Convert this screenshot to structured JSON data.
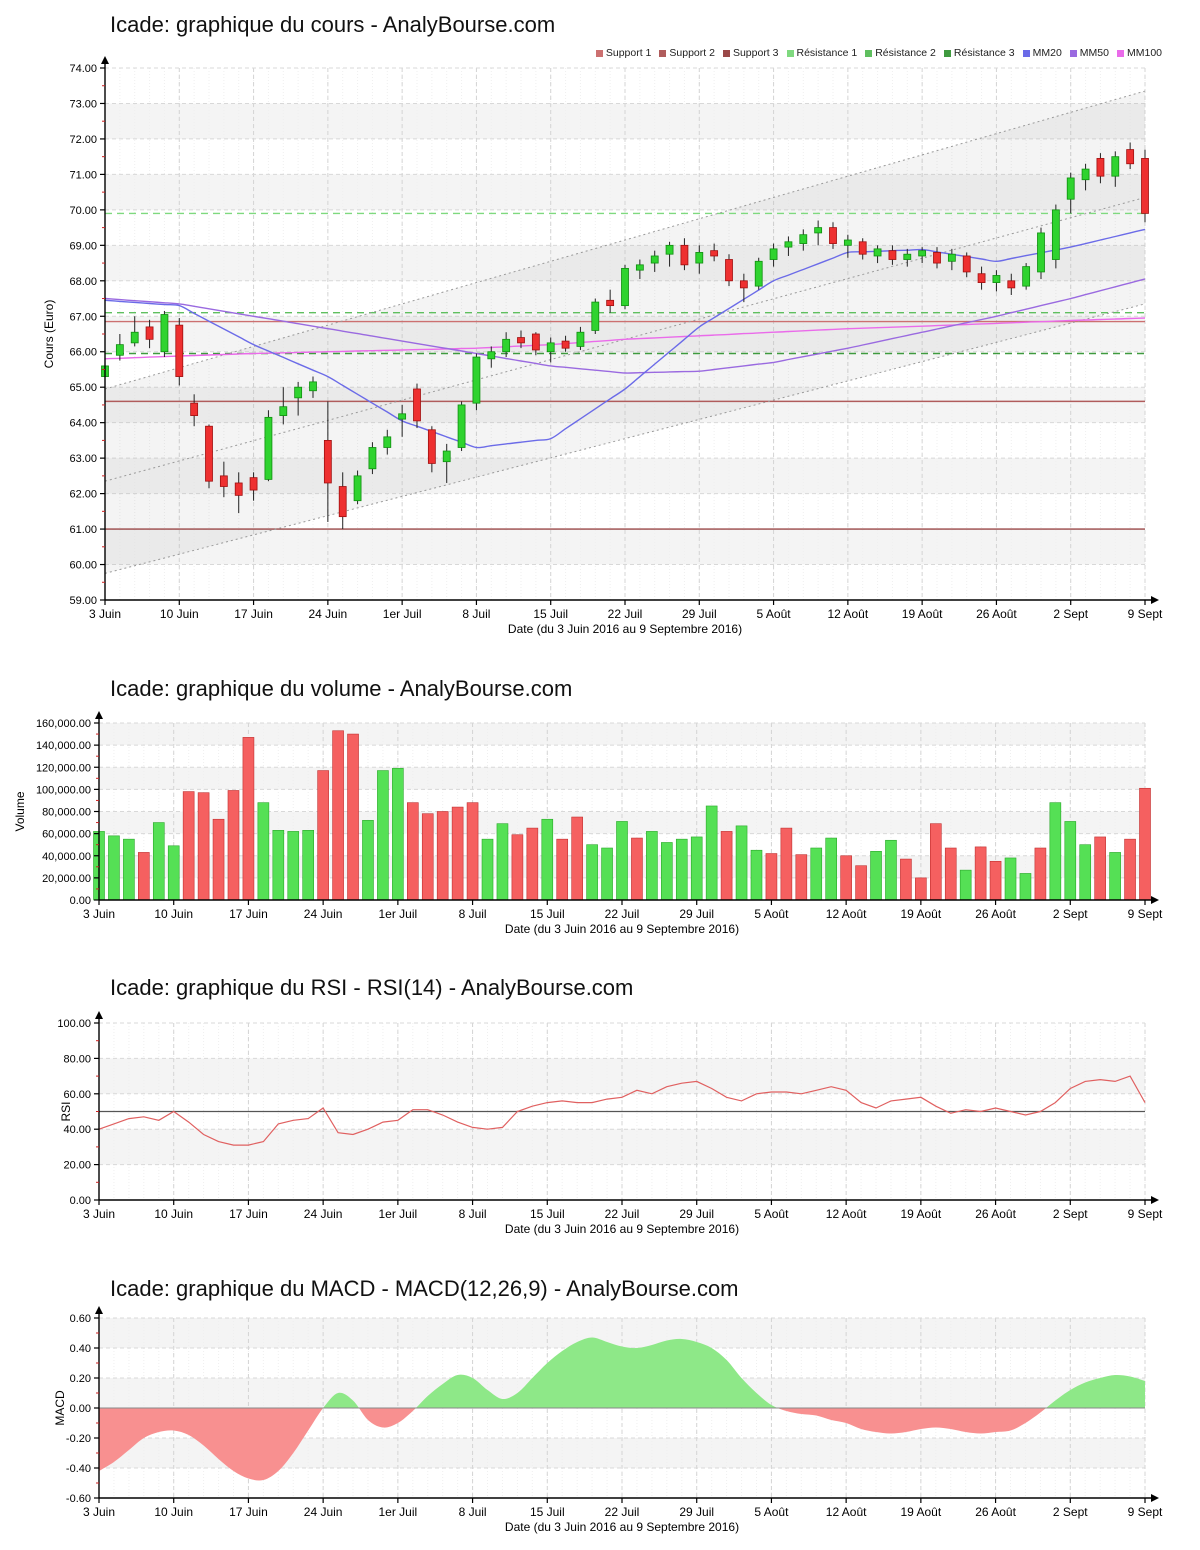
{
  "page_background": "#ffffff",
  "x_axis": {
    "tick_labels": [
      "3 Juin",
      "10 Juin",
      "17 Juin",
      "24 Juin",
      "1er Juil",
      "8 Juil",
      "15 Juil",
      "22 Juil",
      "29 Juil",
      "5 Août",
      "12 Août",
      "19 Août",
      "26 Août",
      "2 Sept",
      "9 Sept"
    ],
    "caption": "Date (du 3 Juin 2016 au 9 Septembre 2016)"
  },
  "shared_colors": {
    "axis": "#000000",
    "minor_tick": "#cc2222",
    "day_grid": "#efefef",
    "week_grid": "#d4d4d4",
    "h_grid": "#d8d8d8",
    "stripe": "#f4f4f4"
  },
  "chart_data": [
    {
      "type": "candlestick",
      "title": "Icade: graphique du cours - AnalyBourse.com",
      "ylabel": "Cours (Euro)",
      "xlabel": "Date (du 3 Juin 2016 au 9 Septembre 2016)",
      "ylim": [
        59,
        74
      ],
      "y_tick_step": 1,
      "y_tick_labels": [
        "74.00",
        "73.00",
        "72.00",
        "71.00",
        "70.00",
        "69.00",
        "68.00",
        "67.00",
        "66.00",
        "65.00",
        "64.00",
        "63.00",
        "62.00",
        "61.00",
        "60.00",
        "59.00"
      ],
      "legend": [
        {
          "label": "Support 1",
          "color": "#cc7070"
        },
        {
          "label": "Support 2",
          "color": "#b05c5c"
        },
        {
          "label": "Support 3",
          "color": "#9a4848"
        },
        {
          "label": "Résistance 1",
          "color": "#7fd97f"
        },
        {
          "label": "Résistance 2",
          "color": "#5fbf5f"
        },
        {
          "label": "Résistance 3",
          "color": "#3f9a3f"
        },
        {
          "label": "MM20",
          "color": "#6b6be8"
        },
        {
          "label": "MM50",
          "color": "#9a6ae0"
        },
        {
          "label": "MM100",
          "color": "#ea6bea"
        }
      ],
      "supports": [
        {
          "name": "Support 1",
          "value": 66.85,
          "color": "#cc7070"
        },
        {
          "name": "Support 2",
          "value": 64.6,
          "color": "#b05c5c"
        },
        {
          "name": "Support 3",
          "value": 61.0,
          "color": "#9a4848"
        }
      ],
      "resistances": [
        {
          "name": "Résistance 1",
          "value": 69.9,
          "color": "#7fd97f"
        },
        {
          "name": "Résistance 2",
          "value": 67.1,
          "color": "#5fbf5f"
        },
        {
          "name": "Résistance 3",
          "value": 65.95,
          "color": "#3f9a3f"
        }
      ],
      "trend_channel": {
        "lower_start": 59.75,
        "lower_end": 67.35,
        "upper_start": 64.95,
        "upper_end": 73.35,
        "line_color": "#9a9a9a",
        "fill": "rgba(150,150,150,0.10)"
      },
      "moving_averages": {
        "mm20_weekly": [
          67.45,
          67.3,
          66.2,
          65.3,
          64.05,
          63.3,
          63.55,
          64.95,
          66.7,
          68.0,
          68.8,
          68.88,
          68.55,
          68.95,
          69.45
        ],
        "mm50_weekly": [
          67.5,
          67.35,
          67.0,
          66.65,
          66.3,
          65.95,
          65.6,
          65.4,
          65.45,
          65.7,
          66.1,
          66.55,
          67.0,
          67.5,
          68.05
        ],
        "mm100_weekly": [
          65.8,
          65.88,
          65.95,
          66.0,
          66.05,
          66.1,
          66.2,
          66.35,
          66.45,
          66.55,
          66.65,
          66.72,
          66.8,
          66.88,
          66.95
        ],
        "mm20_color": "#6b6be8",
        "mm50_color": "#9a6ae0",
        "mm100_color": "#ea6bea"
      },
      "ohlc": [
        [
          65.3,
          66.1,
          64.85,
          65.6
        ],
        [
          65.9,
          66.5,
          65.75,
          66.2
        ],
        [
          66.25,
          67.0,
          66.15,
          66.55
        ],
        [
          66.7,
          66.9,
          66.1,
          66.35
        ],
        [
          66.0,
          67.15,
          65.85,
          67.05
        ],
        [
          66.75,
          66.95,
          65.05,
          65.3
        ],
        [
          64.55,
          64.8,
          63.9,
          64.2
        ],
        [
          63.9,
          63.95,
          62.15,
          62.35
        ],
        [
          62.5,
          62.9,
          61.9,
          62.2
        ],
        [
          62.3,
          62.6,
          61.45,
          61.95
        ],
        [
          62.45,
          62.6,
          61.8,
          62.1
        ],
        [
          62.4,
          64.35,
          62.35,
          64.15
        ],
        [
          64.2,
          65.0,
          63.95,
          64.45
        ],
        [
          64.7,
          65.15,
          64.2,
          65.0
        ],
        [
          64.9,
          65.3,
          64.7,
          65.15
        ],
        [
          63.5,
          64.6,
          61.2,
          62.3
        ],
        [
          62.2,
          62.6,
          61.0,
          61.35
        ],
        [
          61.8,
          62.65,
          61.7,
          62.5
        ],
        [
          62.7,
          63.45,
          62.55,
          63.3
        ],
        [
          63.3,
          63.8,
          63.1,
          63.6
        ],
        [
          64.1,
          64.5,
          63.6,
          64.25
        ],
        [
          64.95,
          65.1,
          63.85,
          64.05
        ],
        [
          63.8,
          63.9,
          62.6,
          62.85
        ],
        [
          62.9,
          63.4,
          62.3,
          63.2
        ],
        [
          63.3,
          64.6,
          63.2,
          64.5
        ],
        [
          64.55,
          65.95,
          64.35,
          65.85
        ],
        [
          65.8,
          66.15,
          65.55,
          66.0
        ],
        [
          66.0,
          66.55,
          65.85,
          66.35
        ],
        [
          66.4,
          66.6,
          66.1,
          66.25
        ],
        [
          66.5,
          66.55,
          65.9,
          66.05
        ],
        [
          66.0,
          66.4,
          65.7,
          66.25
        ],
        [
          66.3,
          66.45,
          66.0,
          66.1
        ],
        [
          66.15,
          66.7,
          66.05,
          66.55
        ],
        [
          66.6,
          67.5,
          66.5,
          67.4
        ],
        [
          67.45,
          67.75,
          67.1,
          67.3
        ],
        [
          67.3,
          68.45,
          67.2,
          68.35
        ],
        [
          68.3,
          68.6,
          68.05,
          68.45
        ],
        [
          68.5,
          68.85,
          68.25,
          68.7
        ],
        [
          68.75,
          69.1,
          68.4,
          69.0
        ],
        [
          69.0,
          69.2,
          68.3,
          68.45
        ],
        [
          68.5,
          69.0,
          68.2,
          68.8
        ],
        [
          68.85,
          69.05,
          68.55,
          68.7
        ],
        [
          68.6,
          68.75,
          67.85,
          68.0
        ],
        [
          68.0,
          68.2,
          67.4,
          67.8
        ],
        [
          67.85,
          68.65,
          67.75,
          68.55
        ],
        [
          68.6,
          69.05,
          68.4,
          68.9
        ],
        [
          68.95,
          69.25,
          68.7,
          69.1
        ],
        [
          69.05,
          69.45,
          68.85,
          69.3
        ],
        [
          69.35,
          69.7,
          69.0,
          69.5
        ],
        [
          69.5,
          69.65,
          68.9,
          69.05
        ],
        [
          69.0,
          69.3,
          68.65,
          69.15
        ],
        [
          69.1,
          69.2,
          68.6,
          68.75
        ],
        [
          68.7,
          69.0,
          68.5,
          68.9
        ],
        [
          68.85,
          69.0,
          68.45,
          68.6
        ],
        [
          68.6,
          68.9,
          68.4,
          68.75
        ],
        [
          68.7,
          68.95,
          68.5,
          68.85
        ],
        [
          68.8,
          68.95,
          68.35,
          68.5
        ],
        [
          68.55,
          68.9,
          68.3,
          68.75
        ],
        [
          68.7,
          68.8,
          68.1,
          68.25
        ],
        [
          68.2,
          68.4,
          67.75,
          67.95
        ],
        [
          67.95,
          68.3,
          67.7,
          68.15
        ],
        [
          68.0,
          68.2,
          67.6,
          67.8
        ],
        [
          67.85,
          68.5,
          67.75,
          68.4
        ],
        [
          68.25,
          69.5,
          68.05,
          69.35
        ],
        [
          68.6,
          70.15,
          68.35,
          70.0
        ],
        [
          70.3,
          71.05,
          69.9,
          70.9
        ],
        [
          70.85,
          71.3,
          70.55,
          71.15
        ],
        [
          71.45,
          71.6,
          70.75,
          70.95
        ],
        [
          70.95,
          71.65,
          70.65,
          71.5
        ],
        [
          71.7,
          71.9,
          71.15,
          71.3
        ],
        [
          71.45,
          71.7,
          69.65,
          69.9
        ]
      ],
      "colors": {
        "up": "#2fd32f",
        "up_stroke": "#0f8f0f",
        "down": "#ee3030",
        "down_stroke": "#a01010",
        "wick": "#222222"
      }
    },
    {
      "type": "bar",
      "title": "Icade: graphique du volume - AnalyBourse.com",
      "ylabel": "Volume",
      "xlabel": "Date (du 3 Juin 2016 au 9 Septembre 2016)",
      "ylim": [
        0,
        160000
      ],
      "y_tick_step": 20000,
      "y_tick_labels": [
        "160,000.00",
        "140,000.00",
        "120,000.00",
        "100,000.00",
        "80,000.00",
        "60,000.00",
        "40,000.00",
        "20,000.00",
        "0.00"
      ],
      "values": [
        62000,
        58000,
        55000,
        43000,
        70000,
        49000,
        98000,
        97000,
        73000,
        99000,
        147000,
        88000,
        63000,
        62000,
        63000,
        117000,
        153000,
        150000,
        72000,
        117000,
        119000,
        88000,
        78000,
        80000,
        84000,
        88000,
        55000,
        69000,
        59000,
        65000,
        73000,
        55000,
        75000,
        50000,
        47000,
        71000,
        56000,
        62000,
        52000,
        55000,
        57000,
        85000,
        62000,
        67000,
        45000,
        42000,
        65000,
        41000,
        47000,
        56000,
        40000,
        31000,
        44000,
        54000,
        37000,
        20000,
        69000,
        47000,
        27000,
        48000,
        35000,
        38000,
        24000,
        47000,
        88000,
        71000,
        50000,
        57000,
        43000,
        55000,
        101000
      ],
      "directions": [
        "up",
        "up",
        "up",
        "down",
        "up",
        "up",
        "down",
        "down",
        "down",
        "down",
        "down",
        "up",
        "up",
        "up",
        "up",
        "down",
        "down",
        "down",
        "up",
        "up",
        "up",
        "down",
        "down",
        "down",
        "down",
        "down",
        "up",
        "up",
        "down",
        "down",
        "up",
        "down",
        "down",
        "up",
        "up",
        "up",
        "down",
        "up",
        "up",
        "up",
        "up",
        "up",
        "down",
        "up",
        "up",
        "down",
        "down",
        "down",
        "up",
        "up",
        "down",
        "down",
        "up",
        "up",
        "down",
        "down",
        "down",
        "down",
        "up",
        "down",
        "down",
        "up",
        "up",
        "down",
        "up",
        "up",
        "up",
        "down",
        "up",
        "down",
        "down"
      ],
      "colors": {
        "up": "#55e055",
        "up_stroke": "#2aa82a",
        "down": "#f56060",
        "down_stroke": "#c03030"
      }
    },
    {
      "type": "line",
      "title": "Icade: graphique du RSI - RSI(14) - AnalyBourse.com",
      "ylabel": "RSI",
      "xlabel": "Date (du 3 Juin 2016 au 9 Septembre 2016)",
      "ylim": [
        0,
        100
      ],
      "y_tick_step": 20,
      "y_tick_labels": [
        "100.00",
        "80.00",
        "60.00",
        "40.00",
        "20.00",
        "0.00"
      ],
      "midline": 50,
      "values": [
        40,
        43,
        46,
        47,
        45,
        50,
        44,
        37,
        33,
        31,
        31,
        33,
        43,
        45,
        46,
        52,
        38,
        37,
        40,
        44,
        45,
        51,
        51,
        48,
        44,
        41,
        40,
        41,
        50,
        53,
        55,
        56,
        55,
        55,
        57,
        58,
        62,
        60,
        64,
        66,
        67,
        63,
        58,
        56,
        60,
        61,
        61,
        60,
        62,
        64,
        62,
        55,
        52,
        56,
        57,
        58,
        53,
        49,
        51,
        50,
        52,
        50,
        48,
        50,
        55,
        63,
        67,
        68,
        67,
        70,
        55
      ],
      "colors": {
        "line": "#e06060",
        "midline": "#555555"
      }
    },
    {
      "type": "area",
      "title": "Icade: graphique du MACD - MACD(12,26,9) - AnalyBourse.com",
      "ylabel": "MACD",
      "xlabel": "Date (du 3 Juin 2016 au 9 Septembre 2016)",
      "ylim": [
        -0.6,
        0.6
      ],
      "y_tick_step": 0.2,
      "y_tick_labels": [
        "0.60",
        "0.40",
        "0.20",
        "0.00",
        "-0.20",
        "-0.40",
        "-0.60"
      ],
      "values": [
        -0.42,
        -0.36,
        -0.28,
        -0.2,
        -0.16,
        -0.15,
        -0.18,
        -0.25,
        -0.34,
        -0.42,
        -0.47,
        -0.48,
        -0.42,
        -0.3,
        -0.15,
        0.0,
        0.1,
        0.05,
        -0.08,
        -0.13,
        -0.1,
        -0.02,
        0.08,
        0.16,
        0.22,
        0.2,
        0.12,
        0.06,
        0.1,
        0.2,
        0.3,
        0.38,
        0.44,
        0.47,
        0.44,
        0.41,
        0.4,
        0.42,
        0.45,
        0.46,
        0.44,
        0.4,
        0.32,
        0.2,
        0.1,
        0.02,
        -0.02,
        -0.04,
        -0.05,
        -0.08,
        -0.1,
        -0.14,
        -0.16,
        -0.17,
        -0.16,
        -0.14,
        -0.13,
        -0.14,
        -0.16,
        -0.17,
        -0.16,
        -0.15,
        -0.1,
        -0.03,
        0.05,
        0.12,
        0.17,
        0.2,
        0.22,
        0.21,
        0.18
      ],
      "colors": {
        "positive": "#8ee888",
        "negative": "#f89090",
        "zero_line": "#888888"
      }
    }
  ]
}
